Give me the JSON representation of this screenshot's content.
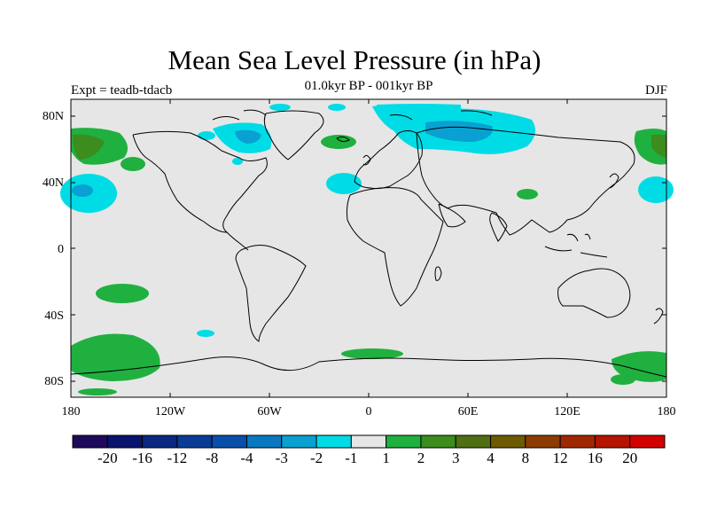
{
  "title": "Mean Sea Level Pressure (in hPa)",
  "subtitle": "01.0kyr BP - 001kyr BP",
  "experiment": "Expt = teadb-tdacb",
  "season": "DJF",
  "map": {
    "background_color": "#e6e6e6",
    "lat_labels": [
      "80N",
      "40N",
      "0",
      "40S",
      "80S"
    ],
    "lon_labels": [
      "180",
      "120W",
      "60W",
      "0",
      "60E",
      "120E",
      "180"
    ]
  },
  "colorbar": {
    "colors": [
      "#1e0a5a",
      "#0a146e",
      "#0a2882",
      "#0a3c96",
      "#0a50aa",
      "#0a78be",
      "#0aa0d2",
      "#00dce6",
      "#e6e6e6",
      "#20b040",
      "#3c8c1e",
      "#506e14",
      "#6e5a00",
      "#8c3c00",
      "#a02800",
      "#b41400",
      "#d20000"
    ],
    "labels": [
      "-20",
      "-16",
      "-12",
      "-8",
      "-4",
      "-3",
      "-2",
      "-1",
      "1",
      "2",
      "3",
      "4",
      "8",
      "12",
      "16",
      "20"
    ]
  }
}
